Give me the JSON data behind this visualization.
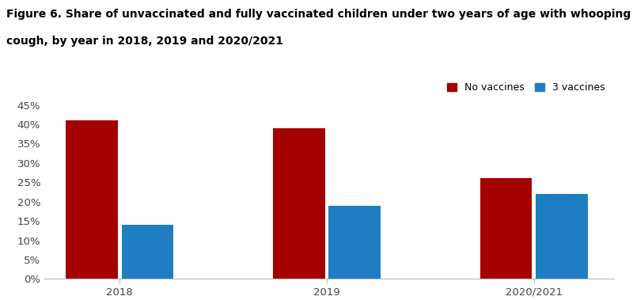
{
  "title_line1": "Figure 6. Share of unvaccinated and fully vaccinated children under two years of age with whooping",
  "title_line2": "cough, by year in 2018, 2019 and 2020/2021",
  "categories": [
    "2018",
    "2019",
    "2020/2021"
  ],
  "no_vaccines": [
    0.41,
    0.39,
    0.26
  ],
  "three_vaccines": [
    0.14,
    0.19,
    0.22
  ],
  "bar_color_red": "#A50000",
  "bar_color_blue": "#1F7EC2",
  "ylim": [
    0,
    0.45
  ],
  "yticks": [
    0.0,
    0.05,
    0.1,
    0.15,
    0.2,
    0.25,
    0.3,
    0.35,
    0.4,
    0.45
  ],
  "ytick_labels": [
    "0%",
    "5%",
    "10%",
    "15%",
    "20%",
    "25%",
    "30%",
    "35%",
    "40%",
    "45%"
  ],
  "legend_no_vaccines": "No vaccines",
  "legend_three_vaccines": "3 vaccines",
  "bar_width": 0.55,
  "title_fontsize": 10,
  "axis_fontsize": 9.5,
  "legend_fontsize": 9,
  "background_color": "#FFFFFF",
  "spine_color": "#BBBBBB"
}
